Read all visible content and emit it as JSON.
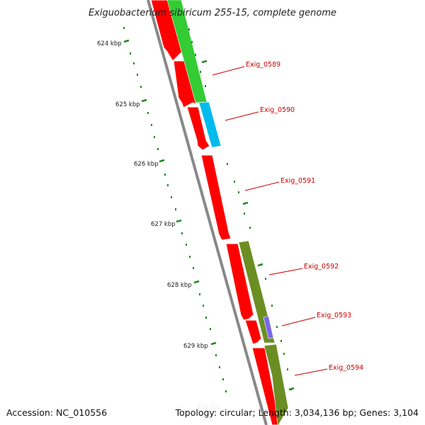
{
  "title": "Exiguobacterium sibiricum 255-15, complete genome",
  "accession": "Accession: NC_010556",
  "summary": "Topology: circular; Length: 3,034,136 bp; Genes: 3,104",
  "ticks": [
    {
      "label": "624 kbp"
    },
    {
      "label": "625 kbp"
    },
    {
      "label": "626 kbp"
    },
    {
      "label": "627 kbp"
    },
    {
      "label": "628 kbp"
    },
    {
      "label": "629 kbp"
    },
    {
      "label": "630 kbp"
    }
  ],
  "genes": [
    {
      "label": "Exig_0589",
      "color": "#33cc33"
    },
    {
      "label": "Exig_0590",
      "color": "#00bbee"
    },
    {
      "label": "Exig_0591",
      "color": "#ff0000"
    },
    {
      "label": "Exig_0592",
      "color": "#6b8e23"
    },
    {
      "label": "Exig_0593",
      "color": "#7b68ee"
    },
    {
      "label": "Exig_0594",
      "color": "#6b8e23"
    }
  ],
  "colors": {
    "cds_forward": "#ff0000",
    "backbone": "#888888",
    "tick": "#228b22",
    "label_text": "#cc0000"
  }
}
